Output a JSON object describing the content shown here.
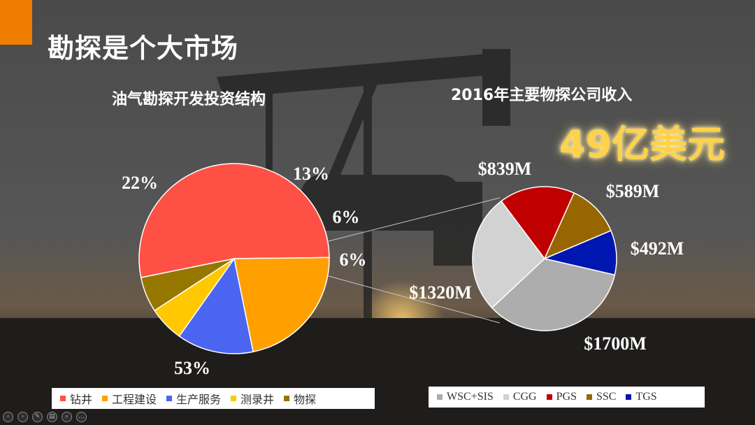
{
  "slide": {
    "title": "勘探是个大市场",
    "left_heading": "油气勘探开发投资结构",
    "right_heading": "2016年主要物探公司收入",
    "total_revenue": "49亿美元"
  },
  "colors": {
    "accent": "#f07d00",
    "highlight_text": "#ffd24a"
  },
  "toolbar": {
    "icons": [
      "prev-icon",
      "next-icon",
      "pen-icon",
      "pages-icon",
      "zoom-icon",
      "more-icon"
    ]
  },
  "chart_data": [
    {
      "type": "pie",
      "title": "油气勘探开发投资结构",
      "categories": [
        "钻井",
        "工程建设",
        "生产服务",
        "测录井",
        "物探"
      ],
      "values": [
        53,
        22,
        13,
        6,
        6
      ],
      "labels": [
        "53%",
        "22%",
        "13%",
        "6%",
        "6%"
      ],
      "colors": [
        "#ff5046",
        "#ffa000",
        "#4a66f0",
        "#ffc800",
        "#957700"
      ],
      "legend": "bottom"
    },
    {
      "type": "pie",
      "title": "2016年主要物探公司收入",
      "categories": [
        "WSC+SIS",
        "CGG",
        "PGS",
        "SSC",
        "TGS"
      ],
      "values": [
        1700,
        1320,
        839,
        589,
        492
      ],
      "labels": [
        "$1700M",
        "$1320M",
        "$839M",
        "$589M",
        "$492M"
      ],
      "colors": [
        "#adadad",
        "#d2d2d2",
        "#c00000",
        "#986600",
        "#0016b0"
      ],
      "legend": "bottom"
    }
  ]
}
